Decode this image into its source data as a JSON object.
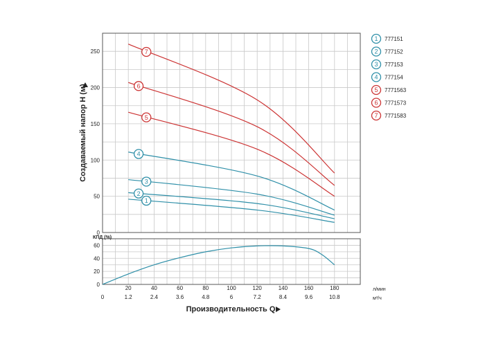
{
  "chart_data": {
    "type": "line",
    "colors": {
      "blue": "#2e8fa8",
      "red": "#cc3333"
    },
    "head_panel": {
      "ylabel": "Создаваемый напор H (м)",
      "yticks": [
        0,
        50,
        100,
        150,
        200,
        250
      ],
      "ylim": [
        0,
        275
      ],
      "series": [
        {
          "marker": "1",
          "color": "blue",
          "x": [
            20,
            120,
            180
          ],
          "y": [
            46,
            31,
            14
          ]
        },
        {
          "marker": "2",
          "color": "blue",
          "x": [
            20,
            120,
            180
          ],
          "y": [
            55,
            40,
            19
          ]
        },
        {
          "marker": "3",
          "color": "blue",
          "x": [
            20,
            120,
            180
          ],
          "y": [
            73,
            53,
            24
          ]
        },
        {
          "marker": "4",
          "color": "blue",
          "x": [
            20,
            120,
            180
          ],
          "y": [
            111,
            78,
            31
          ]
        },
        {
          "marker": "5",
          "color": "red",
          "x": [
            20,
            120,
            180
          ],
          "y": [
            166,
            115,
            50
          ]
        },
        {
          "marker": "6",
          "color": "red",
          "x": [
            20,
            120,
            180
          ],
          "y": [
            207,
            146,
            65
          ]
        },
        {
          "marker": "7",
          "color": "red",
          "x": [
            20,
            120,
            180
          ],
          "y": [
            260,
            183,
            82
          ]
        }
      ]
    },
    "efficiency_panel": {
      "ylabel": "КПД (%)",
      "yticks": [
        0,
        20,
        40,
        60
      ],
      "ylim": [
        0,
        70
      ],
      "series": [
        {
          "color": "blue",
          "x": [
            0,
            20,
            40,
            60,
            80,
            100,
            120,
            140,
            160,
            170,
            180
          ],
          "y": [
            0,
            16,
            30,
            41,
            50,
            56,
            59,
            59,
            55,
            46,
            30
          ]
        }
      ]
    },
    "x_axis": {
      "xlim": [
        0,
        200
      ],
      "lmin_ticks": [
        20,
        40,
        60,
        80,
        100,
        120,
        140,
        160,
        180
      ],
      "m3h_ticks": [
        "0",
        "1.2",
        "2.4",
        "3.6",
        "4.8",
        "6",
        "7.2",
        "8.4",
        "9.6",
        "10.8"
      ],
      "m3h_positions": [
        0,
        20,
        40,
        60,
        80,
        100,
        120,
        140,
        160,
        180
      ],
      "lmin_unit": "л/мин",
      "m3h_unit": "м³/ч",
      "xlabel": "Производительность Q"
    },
    "legend": [
      {
        "marker": "1",
        "label": "777151",
        "color": "blue"
      },
      {
        "marker": "2",
        "label": "777152",
        "color": "blue"
      },
      {
        "marker": "3",
        "label": "777153",
        "color": "blue"
      },
      {
        "marker": "4",
        "label": "777154",
        "color": "blue"
      },
      {
        "marker": "5",
        "label": "7771563",
        "color": "red"
      },
      {
        "marker": "6",
        "label": "7771573",
        "color": "red"
      },
      {
        "marker": "7",
        "label": "7771583",
        "color": "red"
      }
    ]
  }
}
